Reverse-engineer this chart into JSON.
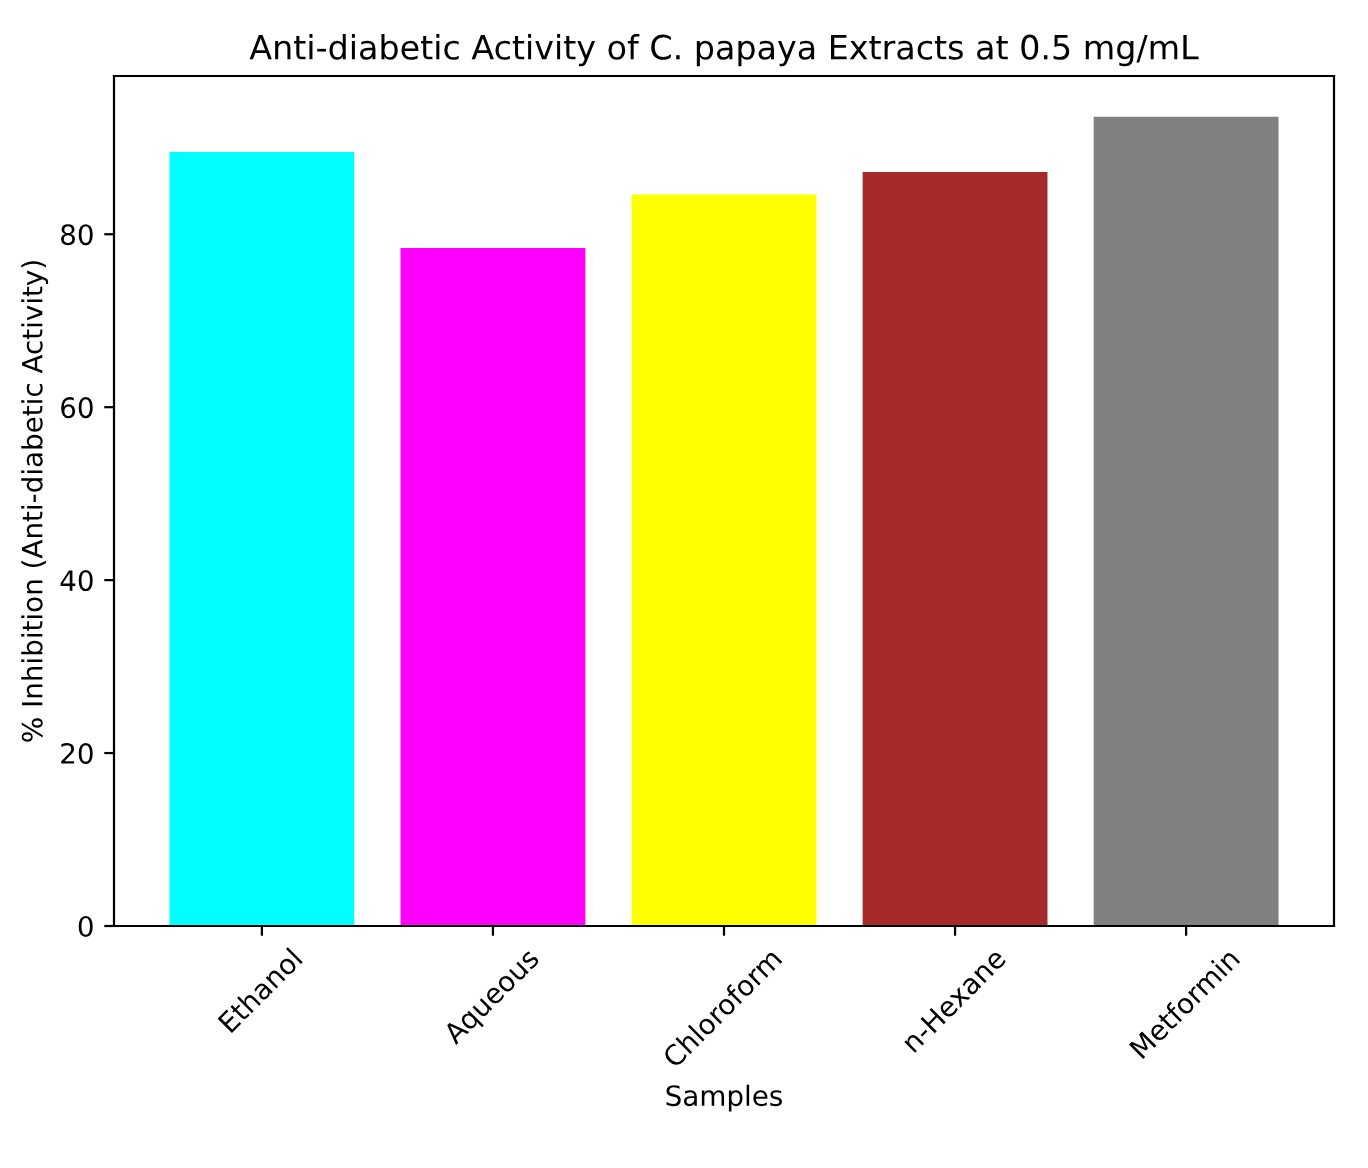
{
  "chart_data": {
    "type": "bar",
    "title": "Anti-diabetic Activity of C. papaya Extracts at 0.5 mg/mL",
    "xlabel": "Samples",
    "ylabel": "% Inhibition (Anti-diabetic Activity)",
    "categories": [
      "Ethanol",
      "Aqueous",
      "Chloroform",
      "n-Hexane",
      "Metformin"
    ],
    "values": [
      89.5,
      78.4,
      84.6,
      87.2,
      93.6
    ],
    "colors": [
      "#00ffff",
      "#ff00ff",
      "#ffff00",
      "#a52a2a",
      "#808080"
    ],
    "ylim": [
      0,
      98.3
    ],
    "yticks": [
      0,
      20,
      40,
      60,
      80
    ],
    "grid": false
  }
}
